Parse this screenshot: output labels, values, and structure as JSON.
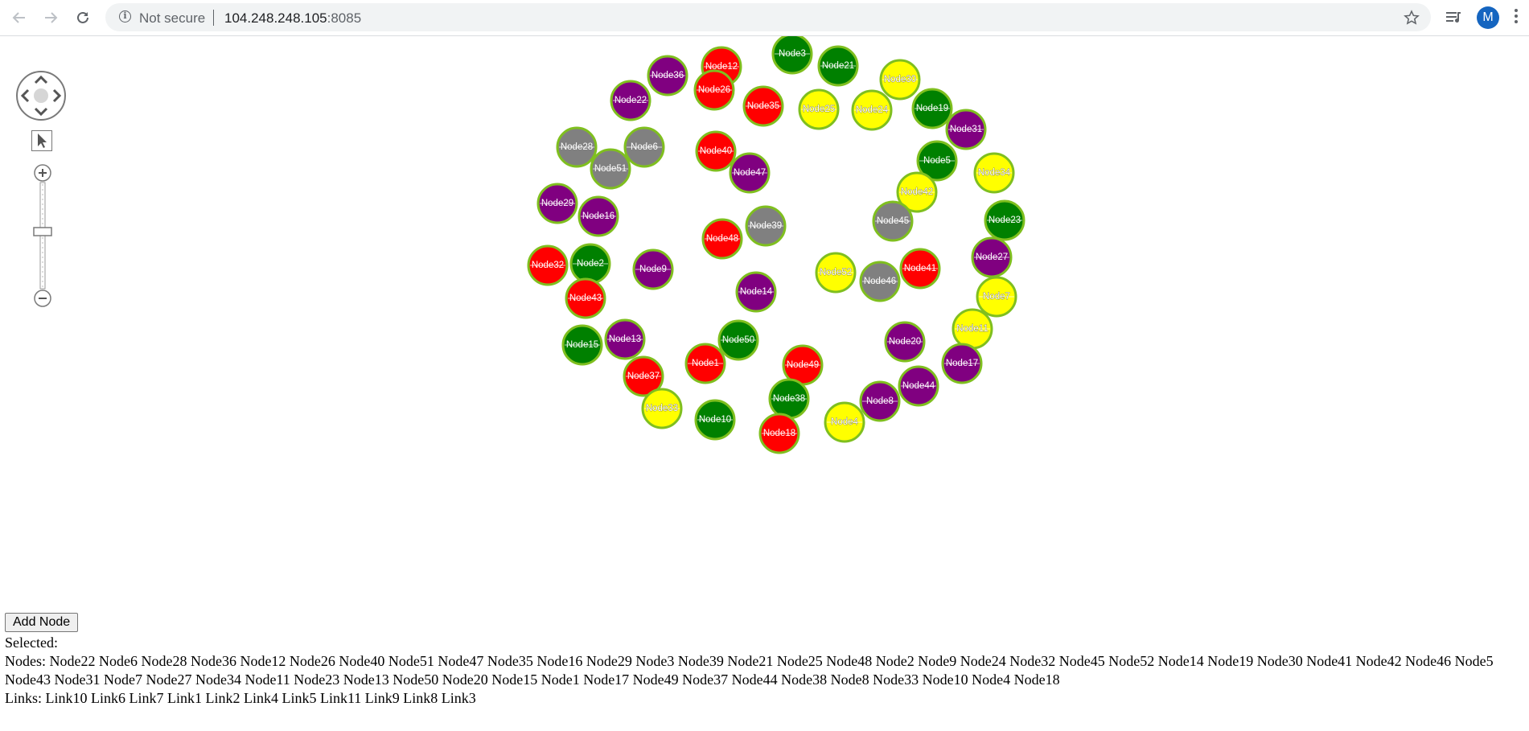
{
  "browser": {
    "security_label": "Not secure",
    "url_host": "104.248.248.105",
    "url_port": ":8085",
    "profile_initial": "M",
    "icons": [
      "back-arrow-icon",
      "forward-arrow-icon",
      "reload-icon",
      "info-icon",
      "star-icon",
      "media-queue-icon",
      "menu-icon"
    ]
  },
  "graph": {
    "node_colors": {
      "red": "#ff0000",
      "green": "#008000",
      "purple": "#800080",
      "yellow": "#ffff00",
      "gray": "#808080"
    },
    "node_border": "#7fbf1f",
    "nodes": [
      {
        "label": "Node12",
        "color": "red"
      },
      {
        "label": "Node3",
        "color": "green"
      },
      {
        "label": "Node21",
        "color": "green"
      },
      {
        "label": "Node36",
        "color": "purple"
      },
      {
        "label": "Node30",
        "color": "yellow"
      },
      {
        "label": "Node26",
        "color": "red"
      },
      {
        "label": "Node22",
        "color": "purple"
      },
      {
        "label": "Node35",
        "color": "red"
      },
      {
        "label": "Node25",
        "color": "yellow"
      },
      {
        "label": "Node24",
        "color": "yellow"
      },
      {
        "label": "Node19",
        "color": "green"
      },
      {
        "label": "Node31",
        "color": "purple"
      },
      {
        "label": "Node28",
        "color": "gray"
      },
      {
        "label": "Node6",
        "color": "gray"
      },
      {
        "label": "Node40",
        "color": "red"
      },
      {
        "label": "Node51",
        "color": "gray"
      },
      {
        "label": "Node5",
        "color": "green"
      },
      {
        "label": "Node47",
        "color": "purple"
      },
      {
        "label": "Node34",
        "color": "yellow"
      },
      {
        "label": "Node42",
        "color": "yellow"
      },
      {
        "label": "Node29",
        "color": "purple"
      },
      {
        "label": "Node16",
        "color": "purple"
      },
      {
        "label": "Node45",
        "color": "gray"
      },
      {
        "label": "Node23",
        "color": "green"
      },
      {
        "label": "Node39",
        "color": "gray"
      },
      {
        "label": "Node48",
        "color": "red"
      },
      {
        "label": "Node27",
        "color": "purple"
      },
      {
        "label": "Node32",
        "color": "red"
      },
      {
        "label": "Node2",
        "color": "green"
      },
      {
        "label": "Node9",
        "color": "purple"
      },
      {
        "label": "Node41",
        "color": "red"
      },
      {
        "label": "Node52",
        "color": "yellow"
      },
      {
        "label": "Node46",
        "color": "gray"
      },
      {
        "label": "Node14",
        "color": "purple"
      },
      {
        "label": "Node7",
        "color": "yellow"
      },
      {
        "label": "Node43",
        "color": "red"
      },
      {
        "label": "Node11",
        "color": "yellow"
      },
      {
        "label": "Node13",
        "color": "purple"
      },
      {
        "label": "Node15",
        "color": "green"
      },
      {
        "label": "Node50",
        "color": "green"
      },
      {
        "label": "Node20",
        "color": "purple"
      },
      {
        "label": "Node1",
        "color": "red"
      },
      {
        "label": "Node17",
        "color": "purple"
      },
      {
        "label": "Node49",
        "color": "red"
      },
      {
        "label": "Node37",
        "color": "red"
      },
      {
        "label": "Node44",
        "color": "purple"
      },
      {
        "label": "Node38",
        "color": "green"
      },
      {
        "label": "Node8",
        "color": "purple"
      },
      {
        "label": "Node33",
        "color": "yellow"
      },
      {
        "label": "Node10",
        "color": "green"
      },
      {
        "label": "Node4",
        "color": "yellow"
      },
      {
        "label": "Node18",
        "color": "red"
      }
    ],
    "edge_fragment_label": "k7"
  },
  "controls": {
    "icons": [
      "pan-control-icon",
      "pointer-tool-icon",
      "zoom-in-icon",
      "zoom-out-icon"
    ],
    "zoom_level": 0.55
  },
  "panel": {
    "add_node_label": "Add Node",
    "selected_line": "Selected:",
    "nodes_line": "Nodes: Node22 Node6 Node28 Node36 Node12 Node26 Node40 Node51 Node47 Node35 Node16 Node29 Node3 Node39 Node21 Node25 Node48 Node2 Node9 Node24 Node32 Node45 Node52 Node14 Node19 Node30 Node41 Node42 Node46 Node5 Node43 Node31 Node7 Node27 Node34 Node11 Node23 Node13 Node50 Node20 Node15 Node1 Node17 Node49 Node37 Node44 Node38 Node8 Node33 Node10 Node4 Node18",
    "links_line": "Links: Link10 Link6 Link7 Link1 Link2 Link4 Link5 Link11 Link9 Link8 Link3"
  }
}
